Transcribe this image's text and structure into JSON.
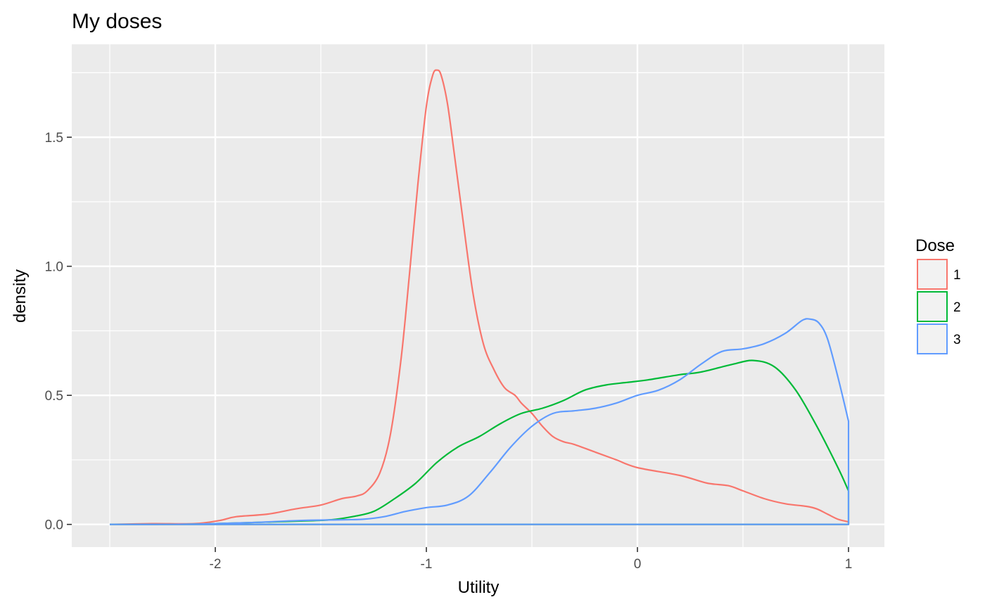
{
  "chart_data": {
    "type": "line",
    "title": "My doses",
    "xlabel": "Utility",
    "ylabel": "density",
    "xlim": [
      -2.68,
      1.17
    ],
    "ylim": [
      -0.088,
      1.86
    ],
    "x_ticks": [
      -2,
      -1,
      0,
      1
    ],
    "x_tick_labels": [
      "-2",
      "-1",
      "0",
      "1"
    ],
    "y_ticks": [
      0.0,
      0.5,
      1.0,
      1.5
    ],
    "y_tick_labels": [
      "0.0",
      "0.5",
      "1.0",
      "1.5"
    ],
    "grid": true,
    "legend": {
      "title": "Dose",
      "position": "right"
    },
    "series": [
      {
        "name": "1",
        "color": "#F8766D",
        "x": [
          -2.5,
          -2.3,
          -2.1,
          -1.98,
          -1.9,
          -1.75,
          -1.62,
          -1.5,
          -1.4,
          -1.33,
          -1.28,
          -1.22,
          -1.17,
          -1.12,
          -1.08,
          -1.04,
          -1.0,
          -0.97,
          -0.95,
          -0.93,
          -0.9,
          -0.87,
          -0.83,
          -0.78,
          -0.73,
          -0.68,
          -0.63,
          -0.58,
          -0.55,
          -0.5,
          -0.45,
          -0.4,
          -0.35,
          -0.3,
          -0.2,
          -0.1,
          0.0,
          0.2,
          0.33,
          0.43,
          0.5,
          0.6,
          0.7,
          0.8,
          0.85,
          0.9,
          0.95,
          1.0
        ],
        "y": [
          0.0,
          0.003,
          0.003,
          0.015,
          0.03,
          0.04,
          0.06,
          0.075,
          0.1,
          0.11,
          0.13,
          0.2,
          0.35,
          0.64,
          0.97,
          1.32,
          1.62,
          1.74,
          1.76,
          1.74,
          1.63,
          1.45,
          1.2,
          0.9,
          0.7,
          0.6,
          0.53,
          0.5,
          0.47,
          0.43,
          0.38,
          0.34,
          0.32,
          0.31,
          0.28,
          0.25,
          0.22,
          0.19,
          0.16,
          0.15,
          0.13,
          0.1,
          0.08,
          0.07,
          0.06,
          0.04,
          0.02,
          0.01
        ]
      },
      {
        "name": "2",
        "color": "#00BA38",
        "x": [
          -2.5,
          -2.2,
          -2.0,
          -1.8,
          -1.6,
          -1.45,
          -1.35,
          -1.25,
          -1.15,
          -1.05,
          -0.95,
          -0.85,
          -0.75,
          -0.65,
          -0.55,
          -0.45,
          -0.35,
          -0.25,
          -0.15,
          -0.05,
          0.05,
          0.2,
          0.3,
          0.45,
          0.55,
          0.65,
          0.75,
          0.85,
          0.95,
          1.0
        ],
        "y": [
          0.0,
          0.0,
          0.003,
          0.008,
          0.013,
          0.018,
          0.03,
          0.05,
          0.1,
          0.16,
          0.24,
          0.3,
          0.34,
          0.39,
          0.43,
          0.45,
          0.48,
          0.52,
          0.54,
          0.55,
          0.56,
          0.58,
          0.59,
          0.62,
          0.635,
          0.61,
          0.52,
          0.38,
          0.22,
          0.13
        ]
      },
      {
        "name": "3",
        "color": "#619CFF",
        "x": [
          -2.5,
          -2.2,
          -2.0,
          -1.8,
          -1.6,
          -1.4,
          -1.3,
          -1.2,
          -1.1,
          -1.0,
          -0.9,
          -0.8,
          -0.7,
          -0.6,
          -0.5,
          -0.4,
          -0.3,
          -0.2,
          -0.1,
          0.0,
          0.1,
          0.2,
          0.3,
          0.4,
          0.5,
          0.6,
          0.7,
          0.78,
          0.82,
          0.86,
          0.9,
          0.95,
          1.0
        ],
        "y": [
          0.0,
          0.0,
          0.003,
          0.008,
          0.015,
          0.018,
          0.02,
          0.03,
          0.05,
          0.065,
          0.075,
          0.11,
          0.2,
          0.3,
          0.38,
          0.43,
          0.44,
          0.45,
          0.47,
          0.5,
          0.52,
          0.56,
          0.62,
          0.67,
          0.68,
          0.7,
          0.74,
          0.79,
          0.795,
          0.78,
          0.72,
          0.57,
          0.4
        ]
      }
    ]
  }
}
